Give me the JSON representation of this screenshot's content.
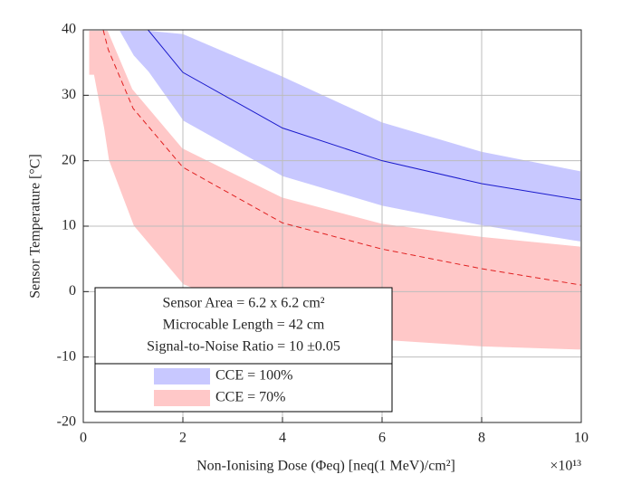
{
  "chart_data": {
    "type": "band-line",
    "xlabel": "Non-Ionising Dose (Φeq) [neq(1 MeV)/cm²]",
    "x_multiplier": "×10¹³",
    "ylabel": "Sensor Temperature [°C]",
    "xlim": [
      0,
      10
    ],
    "xticks": [
      0,
      2,
      4,
      6,
      8,
      10
    ],
    "ylim": [
      -20,
      40
    ],
    "yticks": [
      -20,
      -10,
      0,
      10,
      20,
      30,
      40
    ],
    "grid": true,
    "annotations": [
      "Sensor Area = 6.2 x 6.2 cm²",
      "Microcable Length = 42 cm",
      "Signal-to-Noise Ratio = 10 ±0.05"
    ],
    "series": [
      {
        "name": "CCE = 100%",
        "color": "#c8c8ff",
        "line_color": "#1a1acc",
        "dash": false,
        "x": [
          0.7,
          1,
          1.3,
          2,
          4,
          6,
          8,
          10
        ],
        "values": [
          null,
          null,
          40,
          33.5,
          25,
          20,
          16.5,
          14
        ],
        "upper": [
          40,
          40,
          40,
          39.5,
          33,
          26,
          21.5,
          18.5
        ],
        "lower": [
          40,
          36,
          33.5,
          26,
          17.5,
          13,
          10,
          7.5
        ]
      },
      {
        "name": "CCE = 70%",
        "color": "#ffc8c8",
        "line_color": "#e02020",
        "dash": true,
        "x": [
          0.1,
          0.2,
          0.4,
          0.5,
          1,
          2,
          4,
          6,
          8,
          10
        ],
        "values": [
          null,
          null,
          40,
          37,
          28,
          19,
          10.5,
          6.5,
          3.5,
          1
        ],
        "upper": [
          40,
          40,
          40,
          40,
          31,
          22,
          14.5,
          10.5,
          8.5,
          7
        ],
        "lower": [
          33,
          33,
          25,
          20,
          10,
          1,
          -5,
          -7.5,
          -8.5,
          -9
        ]
      }
    ]
  }
}
